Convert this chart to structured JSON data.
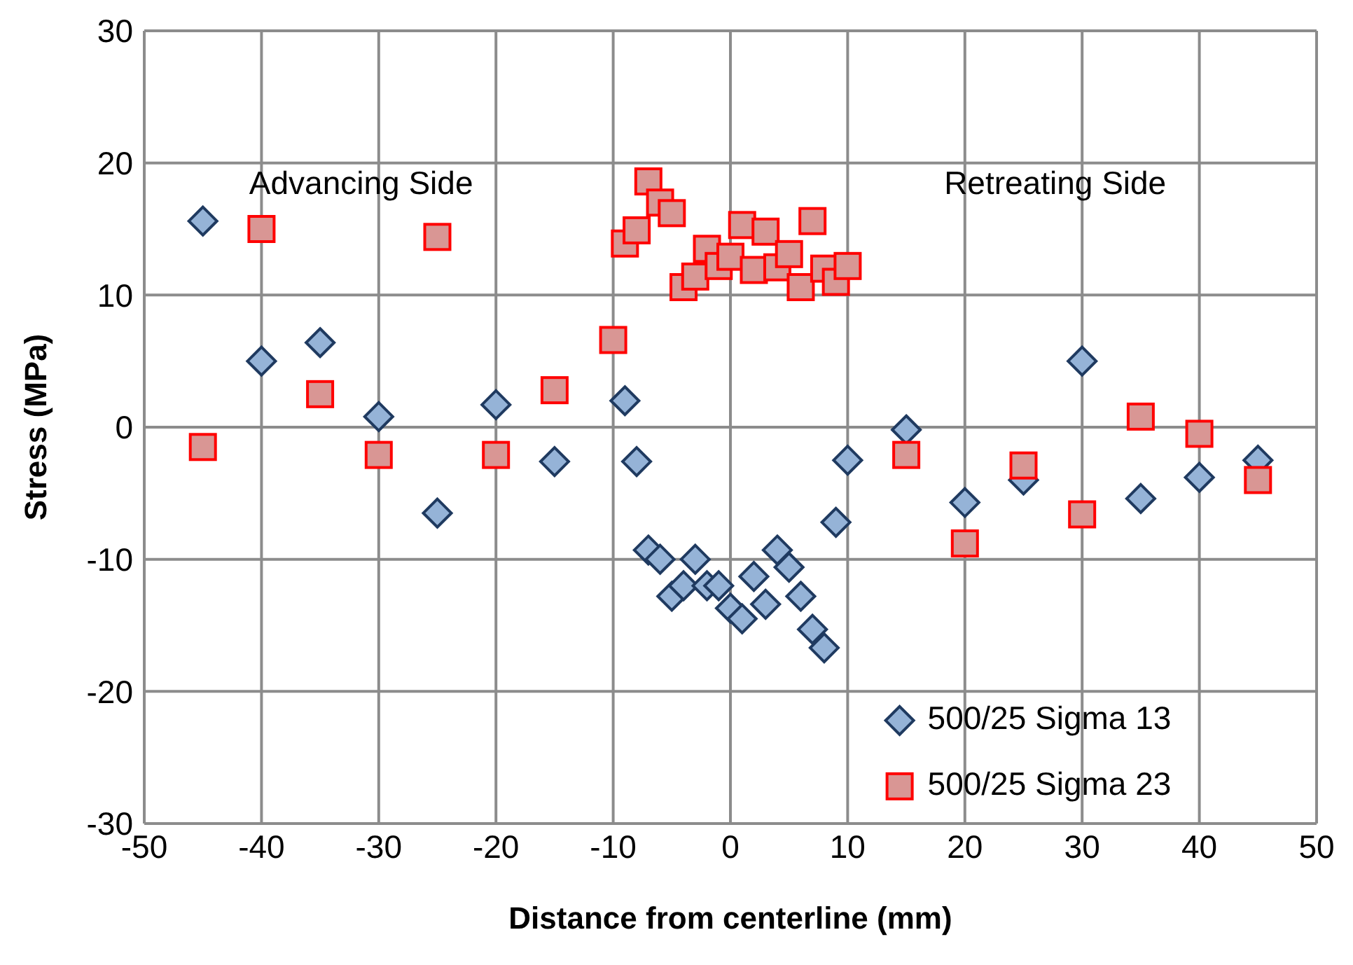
{
  "chart_data": {
    "type": "scatter",
    "xlabel": "Distance from centerline (mm)",
    "ylabel": "Stress (MPa)",
    "xlim": [
      -50,
      50
    ],
    "xticks": [
      -50,
      -40,
      -30,
      -20,
      -10,
      0,
      10,
      20,
      30,
      40,
      50
    ],
    "ylim": [
      -30,
      30
    ],
    "yticks": [
      -30,
      -20,
      -10,
      0,
      10,
      20,
      30
    ],
    "grid": true,
    "legend": "bottom right",
    "annotations": [
      "Advancing Side",
      "Retreating Side"
    ],
    "series": [
      {
        "name": "500/25 Sigma 13",
        "color": "#95b3d7",
        "marker": "diamond",
        "x": [
          -45,
          -40,
          -35,
          -30,
          -25,
          -20,
          -15,
          -9,
          -8,
          -7,
          -6,
          -5,
          -4,
          -3,
          -2,
          -1,
          0,
          1,
          2,
          3,
          4,
          5,
          6,
          7,
          8,
          9,
          10,
          15,
          20,
          25,
          30,
          35,
          40,
          45
        ],
        "values": [
          15.6,
          5.0,
          6.4,
          0.8,
          -6.5,
          1.7,
          -2.6,
          2.0,
          -2.6,
          -9.3,
          -10.0,
          -12.8,
          -12.0,
          -10.0,
          -12.0,
          -12.0,
          -13.7,
          -14.5,
          -11.3,
          -13.4,
          -9.3,
          -10.6,
          -12.8,
          -15.3,
          -16.7,
          -7.2,
          -2.5,
          -0.2,
          -5.7,
          -4.0,
          5.0,
          -5.4,
          -3.8,
          -2.5
        ]
      },
      {
        "name": "500/25 Sigma 23",
        "color": "#d99694",
        "marker": "square",
        "x": [
          -45,
          -40,
          -35,
          -30,
          -25,
          -20,
          -15,
          -10,
          -9,
          -8,
          -7,
          -6,
          -5,
          -4,
          -3,
          -2,
          -1,
          0,
          1,
          2,
          3,
          4,
          5,
          6,
          7,
          8,
          9,
          10,
          15,
          20,
          25,
          30,
          35,
          40,
          45
        ],
        "values": [
          -1.5,
          15.0,
          2.5,
          -2.1,
          14.4,
          -2.1,
          2.8,
          6.6,
          13.9,
          14.9,
          18.6,
          17.0,
          16.2,
          10.6,
          11.4,
          13.5,
          12.2,
          12.9,
          15.3,
          11.9,
          14.8,
          12.1,
          13.1,
          10.6,
          15.6,
          12.0,
          11.0,
          12.2,
          -2.1,
          -8.8,
          -2.9,
          -6.6,
          0.8,
          -0.5,
          -4.0
        ]
      }
    ]
  }
}
